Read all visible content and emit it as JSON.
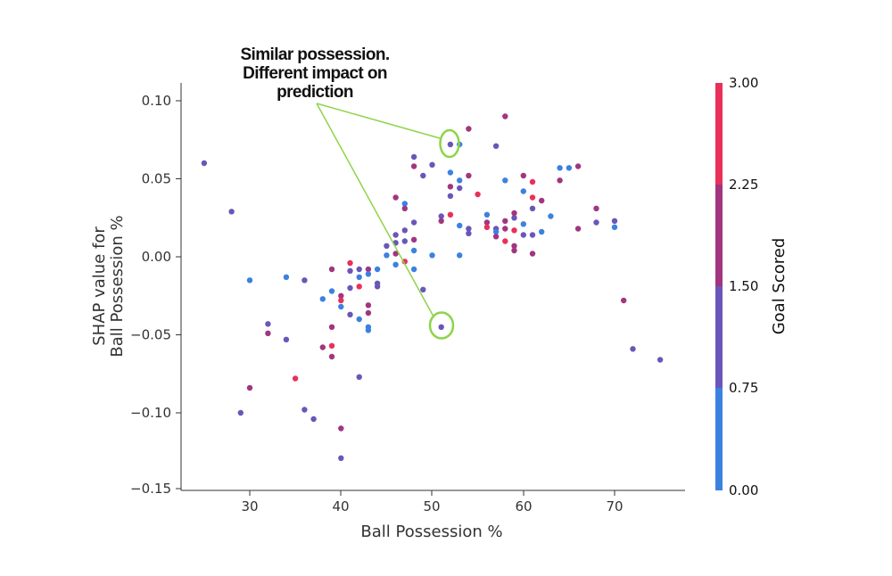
{
  "chart_data": {
    "type": "scatter",
    "title": "",
    "xlabel": "Ball Possession %",
    "ylabel_lines": [
      "SHAP value for",
      "Ball Possession %"
    ],
    "xlim": [
      22.5,
      78.5
    ],
    "ylim": [
      -0.152,
      0.112
    ],
    "xticks": [
      30,
      40,
      50,
      60,
      70
    ],
    "yticks": [
      0.1,
      0.05,
      0.0,
      -0.05,
      -0.1,
      -0.15
    ],
    "ytick_labels": [
      "0.10",
      "0.05",
      "0.00",
      "−0.05",
      "−0.10",
      "−0.15"
    ],
    "xtick_labels": [
      "30",
      "40",
      "50",
      "60",
      "70"
    ],
    "colorbar": {
      "title": "Goal Scored",
      "range": [
        0,
        3
      ],
      "ticks": [
        0.0,
        0.75,
        1.5,
        2.25,
        3.0
      ],
      "tick_labels": [
        "0.00",
        "0.75",
        "1.50",
        "2.25",
        "3.00"
      ],
      "colors": [
        "#3b82e0",
        "#6a56b8",
        "#a2357f",
        "#e8315a"
      ]
    },
    "annotation": {
      "lines": [
        "Similar possession.",
        "Different impact on",
        "prediction"
      ],
      "color": "#8ed44a",
      "circled_points": [
        [
          52,
          0.072
        ],
        [
          51,
          -0.045
        ]
      ]
    },
    "points": [
      [
        25,
        0.06,
        1
      ],
      [
        28,
        0.029,
        1
      ],
      [
        29,
        -0.1,
        1
      ],
      [
        30,
        -0.015,
        0
      ],
      [
        30,
        -0.084,
        2
      ],
      [
        32,
        -0.043,
        1
      ],
      [
        32,
        -0.049,
        2
      ],
      [
        34,
        -0.013,
        0
      ],
      [
        34,
        -0.053,
        1
      ],
      [
        35,
        -0.078,
        3
      ],
      [
        36,
        -0.015,
        1
      ],
      [
        36,
        -0.098,
        1
      ],
      [
        37,
        -0.104,
        1
      ],
      [
        38,
        -0.027,
        0
      ],
      [
        38,
        -0.058,
        2
      ],
      [
        39,
        -0.008,
        2
      ],
      [
        39,
        -0.022,
        0
      ],
      [
        39,
        -0.045,
        2
      ],
      [
        39,
        -0.057,
        3
      ],
      [
        39,
        -0.064,
        2
      ],
      [
        40,
        -0.11,
        2
      ],
      [
        40,
        -0.129,
        1
      ],
      [
        40,
        -0.025,
        2
      ],
      [
        40,
        -0.028,
        3
      ],
      [
        40,
        -0.032,
        0
      ],
      [
        41,
        -0.004,
        3
      ],
      [
        41,
        -0.009,
        1
      ],
      [
        41,
        -0.02,
        1
      ],
      [
        41,
        -0.037,
        1
      ],
      [
        42,
        -0.008,
        1
      ],
      [
        42,
        -0.013,
        0
      ],
      [
        42,
        -0.019,
        3
      ],
      [
        42,
        -0.04,
        0
      ],
      [
        42,
        -0.077,
        1
      ],
      [
        43,
        -0.008,
        2
      ],
      [
        43,
        -0.011,
        0
      ],
      [
        43,
        -0.031,
        2
      ],
      [
        43,
        -0.036,
        2
      ],
      [
        43,
        -0.045,
        0
      ],
      [
        43,
        -0.047,
        0
      ],
      [
        44,
        -0.008,
        0
      ],
      [
        44,
        -0.017,
        1
      ],
      [
        44,
        -0.019,
        1
      ],
      [
        45,
        0.001,
        0
      ],
      [
        45,
        0.007,
        1
      ],
      [
        46,
        0.014,
        1
      ],
      [
        46,
        0.038,
        2
      ],
      [
        46,
        0.009,
        1
      ],
      [
        46,
        -0.005,
        0
      ],
      [
        46,
        0.002,
        2
      ],
      [
        47,
        0.034,
        0
      ],
      [
        47,
        0.031,
        2
      ],
      [
        47,
        0.017,
        1
      ],
      [
        47,
        0.01,
        1
      ],
      [
        47,
        -0.003,
        3
      ],
      [
        48,
        0.064,
        1
      ],
      [
        48,
        0.058,
        2
      ],
      [
        48,
        0.022,
        1
      ],
      [
        48,
        0.011,
        2
      ],
      [
        48,
        0.004,
        0
      ],
      [
        48,
        -0.008,
        0
      ],
      [
        49,
        -0.021,
        1
      ],
      [
        49,
        0.052,
        1
      ],
      [
        50,
        0.059,
        1
      ],
      [
        50,
        0.001,
        0
      ],
      [
        51,
        0.026,
        1
      ],
      [
        51,
        0.023,
        2
      ],
      [
        51,
        -0.045,
        1
      ],
      [
        52,
        0.072,
        1
      ],
      [
        52,
        0.054,
        0
      ],
      [
        52,
        0.045,
        2
      ],
      [
        52,
        0.039,
        1
      ],
      [
        52,
        0.027,
        3
      ],
      [
        53,
        0.072,
        0
      ],
      [
        53,
        0.049,
        0
      ],
      [
        53,
        0.044,
        1
      ],
      [
        53,
        0.02,
        0
      ],
      [
        53,
        0.001,
        0
      ],
      [
        54,
        0.082,
        2
      ],
      [
        54,
        0.052,
        2
      ],
      [
        54,
        0.018,
        1
      ],
      [
        54,
        0.015,
        1
      ],
      [
        55,
        0.04,
        3
      ],
      [
        56,
        0.027,
        0
      ],
      [
        56,
        0.022,
        2
      ],
      [
        56,
        0.019,
        3
      ],
      [
        57,
        0.071,
        1
      ],
      [
        57,
        0.018,
        1
      ],
      [
        57,
        0.016,
        0
      ],
      [
        57,
        0.013,
        2
      ],
      [
        58,
        0.09,
        2
      ],
      [
        58,
        0.049,
        0
      ],
      [
        58,
        0.023,
        2
      ],
      [
        58,
        0.018,
        2
      ],
      [
        58,
        0.01,
        3
      ],
      [
        59,
        0.025,
        1
      ],
      [
        59,
        0.017,
        3
      ],
      [
        59,
        0.007,
        2
      ],
      [
        59,
        0.004,
        2
      ],
      [
        59,
        0.028,
        2
      ],
      [
        60,
        0.052,
        2
      ],
      [
        60,
        0.042,
        0
      ],
      [
        60,
        0.021,
        0
      ],
      [
        60,
        0.014,
        1
      ],
      [
        61,
        0.048,
        3
      ],
      [
        61,
        0.038,
        3
      ],
      [
        61,
        0.031,
        1
      ],
      [
        61,
        0.014,
        1
      ],
      [
        61,
        0.002,
        2
      ],
      [
        62,
        0.036,
        2
      ],
      [
        62,
        0.016,
        0
      ],
      [
        63,
        0.026,
        0
      ],
      [
        64,
        0.057,
        0
      ],
      [
        64,
        0.049,
        2
      ],
      [
        65,
        0.057,
        0
      ],
      [
        66,
        0.058,
        2
      ],
      [
        66,
        0.018,
        2
      ],
      [
        68,
        0.031,
        2
      ],
      [
        68,
        0.022,
        1
      ],
      [
        70,
        0.023,
        1
      ],
      [
        70,
        0.019,
        0
      ],
      [
        71,
        -0.028,
        2
      ],
      [
        72,
        -0.059,
        1
      ],
      [
        75,
        -0.066,
        1
      ]
    ]
  }
}
